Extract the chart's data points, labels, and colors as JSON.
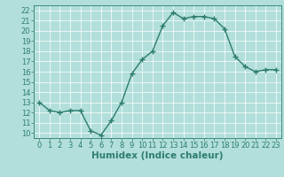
{
  "x": [
    0,
    1,
    2,
    3,
    4,
    5,
    6,
    7,
    8,
    9,
    10,
    11,
    12,
    13,
    14,
    15,
    16,
    17,
    18,
    19,
    20,
    21,
    22,
    23
  ],
  "y": [
    13,
    12.2,
    12,
    12.2,
    12.2,
    10.2,
    9.8,
    11.2,
    13,
    15.8,
    17.2,
    18,
    20.5,
    21.8,
    21.2,
    21.4,
    21.4,
    21.2,
    20.2,
    17.5,
    16.5,
    16,
    16.2,
    16.2
  ],
  "line_color": "#2e7d6e",
  "marker": "+",
  "marker_size": 4,
  "linewidth": 1.0,
  "xlabel": "Humidex (Indice chaleur)",
  "ylim": [
    9.5,
    22.5
  ],
  "xlim": [
    -0.5,
    23.5
  ],
  "yticks": [
    10,
    11,
    12,
    13,
    14,
    15,
    16,
    17,
    18,
    19,
    20,
    21,
    22
  ],
  "xticks": [
    0,
    1,
    2,
    3,
    4,
    5,
    6,
    7,
    8,
    9,
    10,
    11,
    12,
    13,
    14,
    15,
    16,
    17,
    18,
    19,
    20,
    21,
    22,
    23
  ],
  "bg_color": "#b2dfdb",
  "grid_color": "#ffffff",
  "tick_fontsize": 6,
  "label_fontsize": 7.5
}
